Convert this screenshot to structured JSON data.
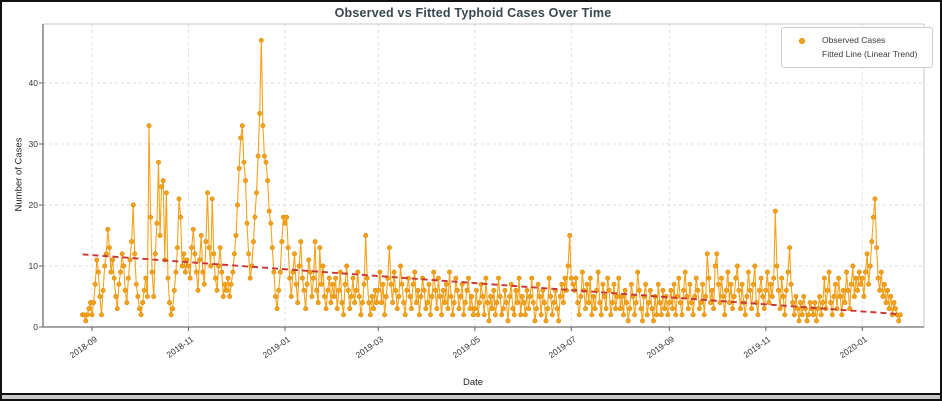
{
  "chart_data": {
    "type": "line",
    "title": "Observed vs Fitted Typhoid Cases Over Time",
    "xlabel": "Date",
    "ylabel": "Number of Cases",
    "x_tick_labels": [
      "2018-09",
      "2018-11",
      "2019-01",
      "2019-03",
      "2019-05",
      "2019-07",
      "2019-09",
      "2019-11",
      "2020-01"
    ],
    "y_ticks": [
      0,
      10,
      20,
      30,
      40
    ],
    "ylim": [
      0,
      49
    ],
    "grid": true,
    "legend_position": "upper right",
    "colors": {
      "observed": "#f6a21c",
      "observed_edge": "#db8c06",
      "fitted": "#c93434",
      "gridline": "#dcdcdc",
      "spine_dark": "#6f6f6f",
      "spine_light": "#c8c8c8",
      "title": "#37474f"
    },
    "series": [
      {
        "name": "Observed Cases",
        "style": "line-markers",
        "color": "#f6a21c",
        "start_date": "2018-08-26",
        "frequency": "daily",
        "values": [
          2,
          2,
          1,
          2,
          3,
          4,
          2,
          4,
          7,
          11,
          9,
          5,
          2,
          6,
          10,
          12,
          16,
          13,
          9,
          11,
          8,
          5,
          3,
          7,
          9,
          12,
          10,
          6,
          4,
          8,
          11,
          14,
          20,
          12,
          7,
          5,
          3,
          2,
          4,
          6,
          8,
          5,
          33,
          18,
          9,
          5,
          12,
          17,
          27,
          15,
          23,
          24,
          11,
          22,
          8,
          4,
          2,
          3,
          6,
          9,
          13,
          21,
          18,
          10,
          12,
          9,
          11,
          10,
          8,
          13,
          16,
          12,
          9,
          6,
          11,
          15,
          9,
          7,
          14,
          22,
          13,
          10,
          21,
          12,
          8,
          6,
          10,
          13,
          9,
          5,
          7,
          6,
          8,
          5,
          7,
          9,
          12,
          15,
          20,
          26,
          31,
          33,
          27,
          24,
          17,
          12,
          8,
          10,
          14,
          18,
          22,
          28,
          35,
          47,
          33,
          28,
          27,
          24,
          19,
          17,
          13,
          9,
          5,
          3,
          6,
          9,
          14,
          18,
          17,
          18,
          13,
          8,
          5,
          9,
          12,
          7,
          4,
          10,
          14,
          8,
          6,
          3,
          7,
          11,
          9,
          5,
          8,
          14,
          6,
          4,
          13,
          7,
          10,
          5,
          3,
          6,
          8,
          4,
          7,
          5,
          8,
          3,
          6,
          9,
          4,
          2,
          7,
          10,
          6,
          3,
          5,
          8,
          4,
          6,
          9,
          5,
          2,
          4,
          7,
          15,
          8,
          4,
          2,
          5,
          3,
          6,
          4,
          6,
          9,
          4,
          7,
          2,
          5,
          8,
          13,
          7,
          4,
          9,
          6,
          3,
          5,
          10,
          7,
          4,
          2,
          6,
          8,
          5,
          3,
          7,
          9,
          4,
          6,
          2,
          5,
          8,
          6,
          3,
          4,
          7,
          2,
          5,
          9,
          6,
          3,
          8,
          5,
          2,
          6,
          4,
          7,
          3,
          9,
          5,
          2,
          4,
          8,
          6,
          3,
          5,
          7,
          2,
          4,
          6,
          8,
          3,
          5,
          2,
          3,
          6,
          2,
          4,
          7,
          5,
          2,
          8,
          4,
          1,
          5,
          3,
          6,
          2,
          4,
          8,
          5,
          2,
          3,
          6,
          4,
          1,
          5,
          7,
          3,
          2,
          6,
          4,
          8,
          2,
          5,
          4,
          2,
          6,
          3,
          5,
          8,
          4,
          1,
          3,
          7,
          5,
          2,
          6,
          4,
          1,
          3,
          8,
          5,
          2,
          4,
          6,
          3,
          1,
          5,
          7,
          4,
          8,
          6,
          10,
          15,
          8,
          7,
          6,
          8,
          4,
          2,
          5,
          9,
          6,
          3,
          7,
          4,
          8,
          2,
          5,
          3,
          6,
          9,
          4,
          2,
          7,
          5,
          3,
          8,
          6,
          2,
          4,
          7,
          3,
          5,
          8,
          3,
          5,
          2,
          6,
          4,
          1,
          3,
          7,
          5,
          2,
          4,
          9,
          6,
          3,
          1,
          5,
          7,
          2,
          4,
          6,
          3,
          1,
          5,
          2,
          7,
          4,
          2,
          6,
          3,
          5,
          2,
          4,
          6,
          3,
          7,
          2,
          5,
          8,
          4,
          2,
          6,
          9,
          5,
          3,
          7,
          4,
          2,
          5,
          8,
          6,
          3,
          4,
          7,
          2,
          5,
          12,
          8,
          4,
          6,
          3,
          10,
          12,
          7,
          4,
          8,
          5,
          2,
          6,
          9,
          4,
          7,
          3,
          5,
          8,
          10,
          6,
          3,
          7,
          4,
          2,
          5,
          9,
          6,
          3,
          7,
          10,
          4,
          2,
          6,
          8,
          5,
          3,
          6,
          9,
          4,
          7,
          5,
          8,
          19,
          10,
          6,
          3,
          8,
          5,
          2,
          6,
          9,
          13,
          7,
          4,
          2,
          5,
          3,
          1,
          4,
          2,
          5,
          3,
          1,
          2,
          4,
          3,
          2,
          4,
          1,
          3,
          5,
          2,
          4,
          8,
          3,
          6,
          9,
          4,
          2,
          5,
          7,
          3,
          8,
          5,
          2,
          6,
          4,
          9,
          6,
          3,
          7,
          10,
          5,
          8,
          6,
          9,
          7,
          8,
          5,
          9,
          12,
          7,
          10,
          14,
          18,
          21,
          13,
          8,
          6,
          9,
          5,
          7,
          4,
          6,
          3,
          5,
          2,
          4,
          3,
          2,
          1,
          2
        ]
      },
      {
        "name": "Fitted Line (Linear Trend)",
        "style": "dashed-line",
        "color": "#c93434",
        "start_value": 11.9,
        "end_value": 2.1
      }
    ]
  }
}
